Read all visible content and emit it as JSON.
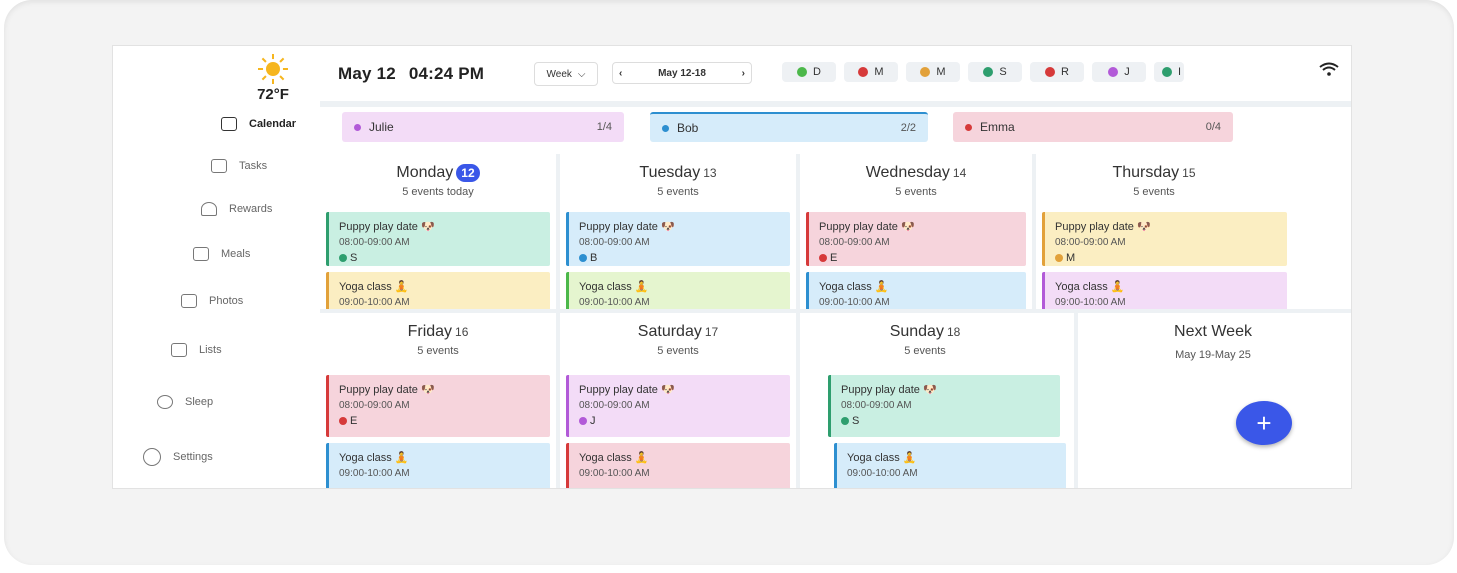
{
  "weather": {
    "temp": "72°F",
    "icon": "sun-icon"
  },
  "sidebar": {
    "items": [
      {
        "label": "Calendar",
        "icon": "calendar-icon",
        "active": true
      },
      {
        "label": "Tasks",
        "icon": "tasks-icon"
      },
      {
        "label": "Rewards",
        "icon": "rewards-icon"
      },
      {
        "label": "Meals",
        "icon": "meals-icon"
      },
      {
        "label": "Photos",
        "icon": "photos-icon"
      },
      {
        "label": "Lists",
        "icon": "lists-icon"
      },
      {
        "label": "Sleep",
        "icon": "sleep-icon"
      },
      {
        "label": "Settings",
        "icon": "settings-icon"
      }
    ]
  },
  "header": {
    "date": "May 12",
    "time": "04:24 PM",
    "view": "Week",
    "range": "May 12-18",
    "members": [
      {
        "initial": "D",
        "color": "#4cb84a"
      },
      {
        "initial": "M",
        "color": "#d63a3a"
      },
      {
        "initial": "M",
        "color": "#e2a13a"
      },
      {
        "initial": "S",
        "color": "#2e9e6e"
      },
      {
        "initial": "R",
        "color": "#d63a3a"
      },
      {
        "initial": "J",
        "color": "#b25ad8"
      },
      {
        "initial": "I",
        "color": "#2e9e6e"
      }
    ]
  },
  "tasks": [
    {
      "name": "Julie",
      "count": "1/4",
      "color": "#b25ad8",
      "bg": "#f3dcf7"
    },
    {
      "name": "Bob",
      "count": "2/2",
      "color": "#2d8fd0",
      "bg": "#d6ecfa"
    },
    {
      "name": "Emma",
      "count": "0/4",
      "color": "#d63a3a",
      "bg": "#f6d4dc"
    }
  ],
  "days": [
    {
      "name": "Monday",
      "num": "12",
      "today": true,
      "sub": "5 events today",
      "events": [
        {
          "title": "Puppy play date",
          "emoji": "🐶",
          "time": "08:00-09:00 AM",
          "who": "S",
          "dot": "#2e9e6e",
          "bg": "#c9efe2",
          "border": "#2e9e6e"
        },
        {
          "title": "Yoga class",
          "emoji": "🧘",
          "time": "09:00-10:00 AM",
          "bg": "#fbeec2",
          "border": "#e2a13a"
        }
      ]
    },
    {
      "name": "Tuesday",
      "num": "13",
      "sub": "5 events",
      "events": [
        {
          "title": "Puppy play date",
          "emoji": "🐶",
          "time": "08:00-09:00 AM",
          "who": "B",
          "dot": "#2d8fd0",
          "bg": "#d6ecfa",
          "border": "#2d8fd0"
        },
        {
          "title": "Yoga class",
          "emoji": "🧘",
          "time": "09:00-10:00 AM",
          "bg": "#e5f5cf",
          "border": "#4cb84a"
        }
      ]
    },
    {
      "name": "Wednesday",
      "num": "14",
      "sub": "5 events",
      "events": [
        {
          "title": "Puppy play date",
          "emoji": "🐶",
          "time": "08:00-09:00 AM",
          "who": "E",
          "dot": "#d63a3a",
          "bg": "#f6d4dc",
          "border": "#d63a3a"
        },
        {
          "title": "Yoga class",
          "emoji": "🧘",
          "time": "09:00-10:00 AM",
          "bg": "#d6ecfa",
          "border": "#2d8fd0"
        }
      ]
    },
    {
      "name": "Thursday",
      "num": "15",
      "sub": "5 events",
      "events": [
        {
          "title": "Puppy play date",
          "emoji": "🐶",
          "time": "08:00-09:00 AM",
          "who": "M",
          "dot": "#e2a13a",
          "bg": "#fbeec2",
          "border": "#e2a13a"
        },
        {
          "title": "Yoga class",
          "emoji": "🧘",
          "time": "09:00-10:00 AM",
          "bg": "#f3dcf7",
          "border": "#b25ad8"
        }
      ]
    },
    {
      "name": "Friday",
      "num": "16",
      "sub": "5 events",
      "events": [
        {
          "title": "Puppy play date",
          "emoji": "🐶",
          "time": "08:00-09:00 AM",
          "who": "E",
          "dot": "#d63a3a",
          "bg": "#f6d4dc",
          "border": "#d63a3a"
        },
        {
          "title": "Yoga class",
          "emoji": "🧘",
          "time": "09:00-10:00 AM",
          "bg": "#d6ecfa",
          "border": "#2d8fd0"
        }
      ]
    },
    {
      "name": "Saturday",
      "num": "17",
      "sub": "5 events",
      "events": [
        {
          "title": "Puppy play date",
          "emoji": "🐶",
          "time": "08:00-09:00 AM",
          "who": "J",
          "dot": "#b25ad8",
          "bg": "#f3dcf7",
          "border": "#b25ad8"
        },
        {
          "title": "Yoga class",
          "emoji": "🧘",
          "time": "09:00-10:00 AM",
          "bg": "#f6d4dc",
          "border": "#d63a3a"
        }
      ]
    },
    {
      "name": "Sunday",
      "num": "18",
      "sub": "5 events",
      "events": [
        {
          "title": "Puppy play date",
          "emoji": "🐶",
          "time": "08:00-09:00 AM",
          "who": "S",
          "dot": "#2e9e6e",
          "bg": "#c9efe2",
          "border": "#2e9e6e"
        },
        {
          "title": "Yoga class",
          "emoji": "🧘",
          "time": "09:00-10:00 AM",
          "bg": "#d6ecfa",
          "border": "#2d8fd0"
        }
      ]
    }
  ],
  "next_week": {
    "title": "Next Week",
    "range": "May 19-May 25"
  },
  "fab": {
    "label": "+",
    "icon": "plus-icon"
  }
}
